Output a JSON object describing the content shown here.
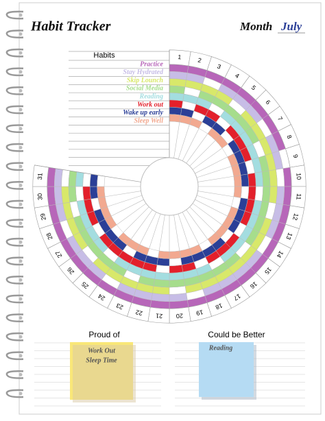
{
  "header": {
    "title": "Habit Tracker",
    "month_label": "Month",
    "month": "July"
  },
  "tracker": {
    "list_title": "Habits",
    "days": [
      1,
      2,
      3,
      4,
      5,
      6,
      7,
      8,
      9,
      10,
      11,
      12,
      13,
      14,
      15,
      16,
      17,
      18,
      19,
      20,
      21,
      22,
      23,
      24,
      25,
      26,
      27,
      28,
      29,
      30,
      31
    ],
    "habits": [
      {
        "name": "Practice",
        "color": "#b766b9",
        "days": [
          1,
          1,
          1,
          1,
          1,
          1,
          1,
          1,
          0,
          1,
          1,
          1,
          1,
          1,
          1,
          1,
          1,
          1,
          1,
          1,
          1,
          1,
          1,
          1,
          1,
          1,
          1,
          1,
          1,
          1,
          1
        ]
      },
      {
        "name": "Stay Hydrated",
        "color": "#c7bde6",
        "days": [
          1,
          1,
          0,
          1,
          1,
          1,
          0,
          1,
          1,
          0,
          1,
          1,
          1,
          0,
          1,
          1,
          1,
          1,
          0,
          1,
          1,
          1,
          1,
          0,
          1,
          1,
          1,
          0,
          1,
          1,
          1
        ]
      },
      {
        "name": "Skip Lounch",
        "color": "#d8e86a",
        "days": [
          1,
          1,
          1,
          1,
          0,
          1,
          1,
          1,
          1,
          1,
          1,
          0,
          1,
          1,
          1,
          1,
          1,
          1,
          1,
          0,
          1,
          1,
          1,
          1,
          1,
          0,
          1,
          1,
          1,
          1,
          0
        ]
      },
      {
        "name": "Social Media",
        "color": "#a6dd8c",
        "days": [
          1,
          0,
          1,
          1,
          1,
          1,
          1,
          0,
          1,
          1,
          1,
          1,
          1,
          1,
          0,
          1,
          1,
          1,
          1,
          1,
          1,
          1,
          0,
          1,
          1,
          1,
          1,
          1,
          0,
          1,
          1
        ]
      },
      {
        "name": "Reading",
        "color": "#a3dde0",
        "days": [
          1,
          1,
          1,
          0,
          1,
          1,
          1,
          1,
          1,
          1,
          0,
          1,
          1,
          1,
          1,
          1,
          0,
          1,
          1,
          1,
          1,
          1,
          1,
          1,
          0,
          1,
          1,
          1,
          1,
          0,
          1
        ]
      },
      {
        "name": "Work out",
        "color": "#e3202b",
        "days": [
          1,
          0,
          1,
          1,
          0,
          1,
          1,
          1,
          0,
          1,
          1,
          1,
          1,
          0,
          1,
          1,
          1,
          0,
          1,
          1,
          0,
          1,
          1,
          1,
          1,
          1,
          0,
          1,
          1,
          1,
          0
        ]
      },
      {
        "name": "Wake up early",
        "color": "#2b3f97",
        "days": [
          1,
          1,
          0,
          1,
          1,
          0,
          1,
          1,
          1,
          1,
          0,
          1,
          1,
          1,
          0,
          1,
          1,
          1,
          1,
          0,
          1,
          1,
          1,
          0,
          1,
          1,
          1,
          1,
          0,
          1,
          1
        ]
      },
      {
        "name": "Sleep Well",
        "color": "#f2a990",
        "days": [
          1,
          1,
          1,
          0,
          1,
          1,
          0,
          1,
          1,
          1,
          1,
          0,
          1,
          1,
          1,
          1,
          0,
          1,
          1,
          1,
          1,
          0,
          1,
          1,
          1,
          0,
          1,
          1,
          1,
          1,
          0
        ]
      }
    ]
  },
  "notes": {
    "proud_title": "Proud of",
    "proud_items": [
      "Work Out",
      "Sleep Time"
    ],
    "better_title": "Could be Better",
    "better_items": [
      "Reading"
    ]
  }
}
